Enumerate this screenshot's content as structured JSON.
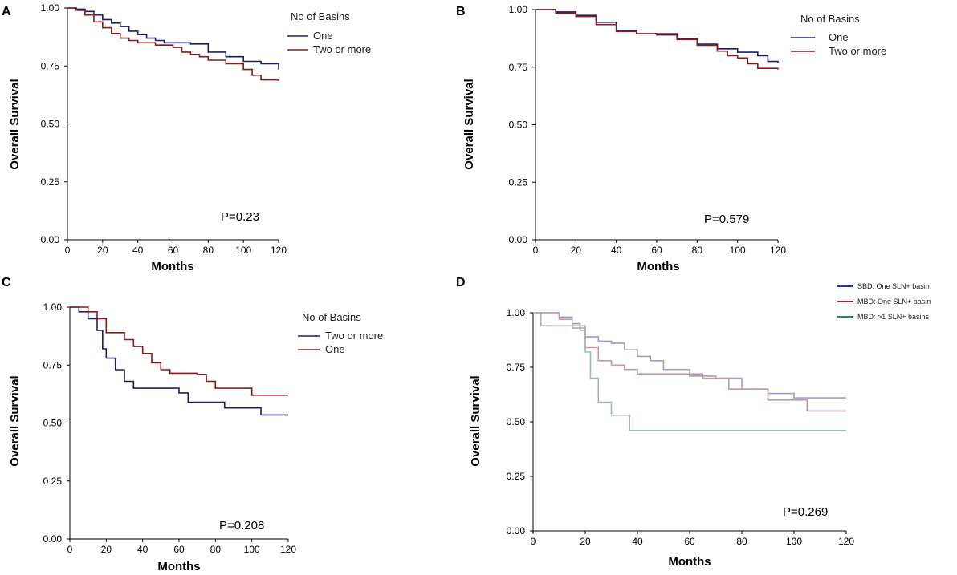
{
  "chart_data": [
    {
      "panel": "A",
      "type": "line",
      "title": "",
      "xlabel": "Months",
      "ylabel": "Overall Survival",
      "xlim": [
        0,
        120
      ],
      "ylim": [
        0,
        1
      ],
      "xticks": [
        "0",
        "20",
        "40",
        "60",
        "80",
        "100",
        "120"
      ],
      "yticks": [
        "0.00",
        "0.25",
        "0.50",
        "0.75",
        "1.00"
      ],
      "legend_title": "No of Basins",
      "annotation": "P=0.23",
      "series": [
        {
          "name": "One",
          "color": "#1b1f6e",
          "x": [
            0,
            5,
            10,
            15,
            20,
            25,
            30,
            35,
            40,
            45,
            50,
            55,
            60,
            70,
            80,
            90,
            100,
            110,
            120
          ],
          "y": [
            1.0,
            0.995,
            0.985,
            0.97,
            0.95,
            0.935,
            0.92,
            0.9,
            0.885,
            0.87,
            0.86,
            0.85,
            0.85,
            0.845,
            0.81,
            0.79,
            0.77,
            0.76,
            0.735
          ]
        },
        {
          "name": "Two or more",
          "color": "#8b1a1a",
          "x": [
            0,
            5,
            10,
            15,
            20,
            25,
            30,
            35,
            40,
            50,
            60,
            65,
            70,
            75,
            80,
            90,
            100,
            105,
            110,
            120
          ],
          "y": [
            1.0,
            0.99,
            0.97,
            0.94,
            0.915,
            0.89,
            0.87,
            0.86,
            0.85,
            0.84,
            0.83,
            0.81,
            0.8,
            0.79,
            0.775,
            0.76,
            0.735,
            0.71,
            0.69,
            0.685
          ]
        }
      ]
    },
    {
      "panel": "B",
      "type": "line",
      "title": "",
      "xlabel": "Months",
      "ylabel": "Overall Survival",
      "xlim": [
        0,
        120
      ],
      "ylim": [
        0,
        1
      ],
      "xticks": [
        "0",
        "20",
        "40",
        "60",
        "80",
        "100",
        "120"
      ],
      "yticks": [
        "0.00",
        "0.25",
        "0.50",
        "0.75",
        "1.00"
      ],
      "legend_title": "No of Basins",
      "annotation": "P=0.579",
      "series": [
        {
          "name": "One",
          "color": "#1b1f6e",
          "x": [
            0,
            10,
            20,
            30,
            40,
            50,
            60,
            70,
            80,
            90,
            100,
            110,
            115,
            120
          ],
          "y": [
            1.0,
            0.99,
            0.975,
            0.945,
            0.91,
            0.895,
            0.89,
            0.875,
            0.85,
            0.83,
            0.815,
            0.8,
            0.775,
            0.77
          ]
        },
        {
          "name": "Two or more",
          "color": "#8b1a1a",
          "x": [
            0,
            10,
            20,
            30,
            40,
            50,
            60,
            70,
            80,
            90,
            95,
            100,
            105,
            110,
            120
          ],
          "y": [
            1.0,
            0.985,
            0.97,
            0.935,
            0.905,
            0.895,
            0.895,
            0.87,
            0.845,
            0.82,
            0.8,
            0.79,
            0.765,
            0.745,
            0.74
          ]
        }
      ]
    },
    {
      "panel": "C",
      "type": "line",
      "title": "",
      "xlabel": "Months",
      "ylabel": "Overall Survival",
      "xlim": [
        0,
        120
      ],
      "ylim": [
        0,
        1
      ],
      "xticks": [
        "0",
        "20",
        "40",
        "60",
        "80",
        "100",
        "120"
      ],
      "yticks": [
        "0.00",
        "0.25",
        "0.50",
        "0.75",
        "1.00"
      ],
      "legend_title": "No of Basins",
      "annotation": "P=0.208",
      "series": [
        {
          "name": "Two or more",
          "color": "#1b1f6e",
          "x": [
            0,
            5,
            10,
            15,
            18,
            20,
            25,
            30,
            35,
            40,
            60,
            65,
            85,
            105,
            120
          ],
          "y": [
            1.0,
            0.98,
            0.95,
            0.9,
            0.82,
            0.78,
            0.73,
            0.68,
            0.65,
            0.65,
            0.63,
            0.59,
            0.565,
            0.535,
            0.535
          ]
        },
        {
          "name": "One",
          "color": "#8b1a1a",
          "x": [
            0,
            10,
            15,
            20,
            30,
            35,
            40,
            45,
            50,
            55,
            70,
            75,
            80,
            100,
            120
          ],
          "y": [
            1.0,
            0.98,
            0.95,
            0.89,
            0.86,
            0.83,
            0.8,
            0.76,
            0.73,
            0.715,
            0.71,
            0.68,
            0.65,
            0.62,
            0.62
          ]
        }
      ]
    },
    {
      "panel": "D",
      "type": "line",
      "title": "",
      "xlabel": "Months",
      "ylabel": "Overall Survival",
      "xlim": [
        0,
        120
      ],
      "ylim": [
        0,
        1
      ],
      "xticks": [
        "0",
        "20",
        "40",
        "60",
        "80",
        "100",
        "120"
      ],
      "yticks": [
        "0.00",
        "0.25",
        "0.50",
        "0.75",
        "1.00"
      ],
      "legend_title": "",
      "annotation": "P=0.269",
      "series": [
        {
          "name": "SBD: One SLN+ basin",
          "color": "#2233aa",
          "display_color": "#9e9ec8",
          "x": [
            0,
            10,
            15,
            18,
            20,
            25,
            30,
            35,
            40,
            45,
            50,
            60,
            70,
            80,
            90,
            100,
            120
          ],
          "y": [
            1.0,
            0.98,
            0.95,
            0.92,
            0.89,
            0.87,
            0.86,
            0.83,
            0.8,
            0.78,
            0.74,
            0.71,
            0.7,
            0.65,
            0.63,
            0.61,
            0.61
          ]
        },
        {
          "name": "MBD: One SLN+ basin",
          "color": "#aa2233",
          "display_color": "#c49aa6",
          "x": [
            0,
            10,
            15,
            20,
            25,
            30,
            35,
            40,
            50,
            65,
            75,
            90,
            105,
            120
          ],
          "y": [
            1.0,
            0.97,
            0.93,
            0.84,
            0.78,
            0.76,
            0.74,
            0.72,
            0.72,
            0.7,
            0.65,
            0.6,
            0.55,
            0.55
          ]
        },
        {
          "name": "MBD: >1 SLN+ basins",
          "color": "#228844",
          "display_color": "#9dbab3",
          "x": [
            0,
            3,
            15,
            20,
            22,
            25,
            30,
            37,
            120
          ],
          "y": [
            1.0,
            0.94,
            0.94,
            0.82,
            0.7,
            0.59,
            0.53,
            0.46,
            0.46
          ]
        }
      ]
    }
  ]
}
